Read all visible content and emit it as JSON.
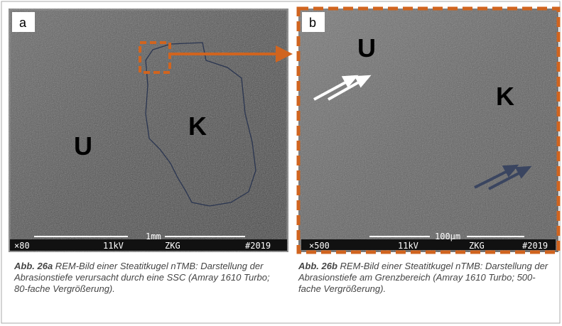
{
  "panels": [
    {
      "label": "a",
      "regions": [
        "U",
        "K"
      ],
      "databar": [
        "×80",
        "11kV",
        "ZKG",
        "#2019"
      ],
      "scale": "1mm",
      "caption": {
        "number": "Abb. 26a",
        "text": " REM-Bild einer Steatitkugel nTMB: Darstellung der Abrasionstiefe verursacht durch eine SSC (Amray 1610 Turbo; 80-fache Vergrößerung)."
      }
    },
    {
      "label": "b",
      "regions": [
        "U",
        "K"
      ],
      "databar": [
        "×500",
        "11kV",
        "ZKG",
        "#2019"
      ],
      "scale": "100µm",
      "caption": {
        "number": "Abb. 26b",
        "text": " REM-Bild einer Steatitkugel nTMB: Darstellung der Abrasionstiefe am Grenzbereich (Amray 1610 Turbo; 500-fache Vergrößerung)."
      }
    }
  ]
}
